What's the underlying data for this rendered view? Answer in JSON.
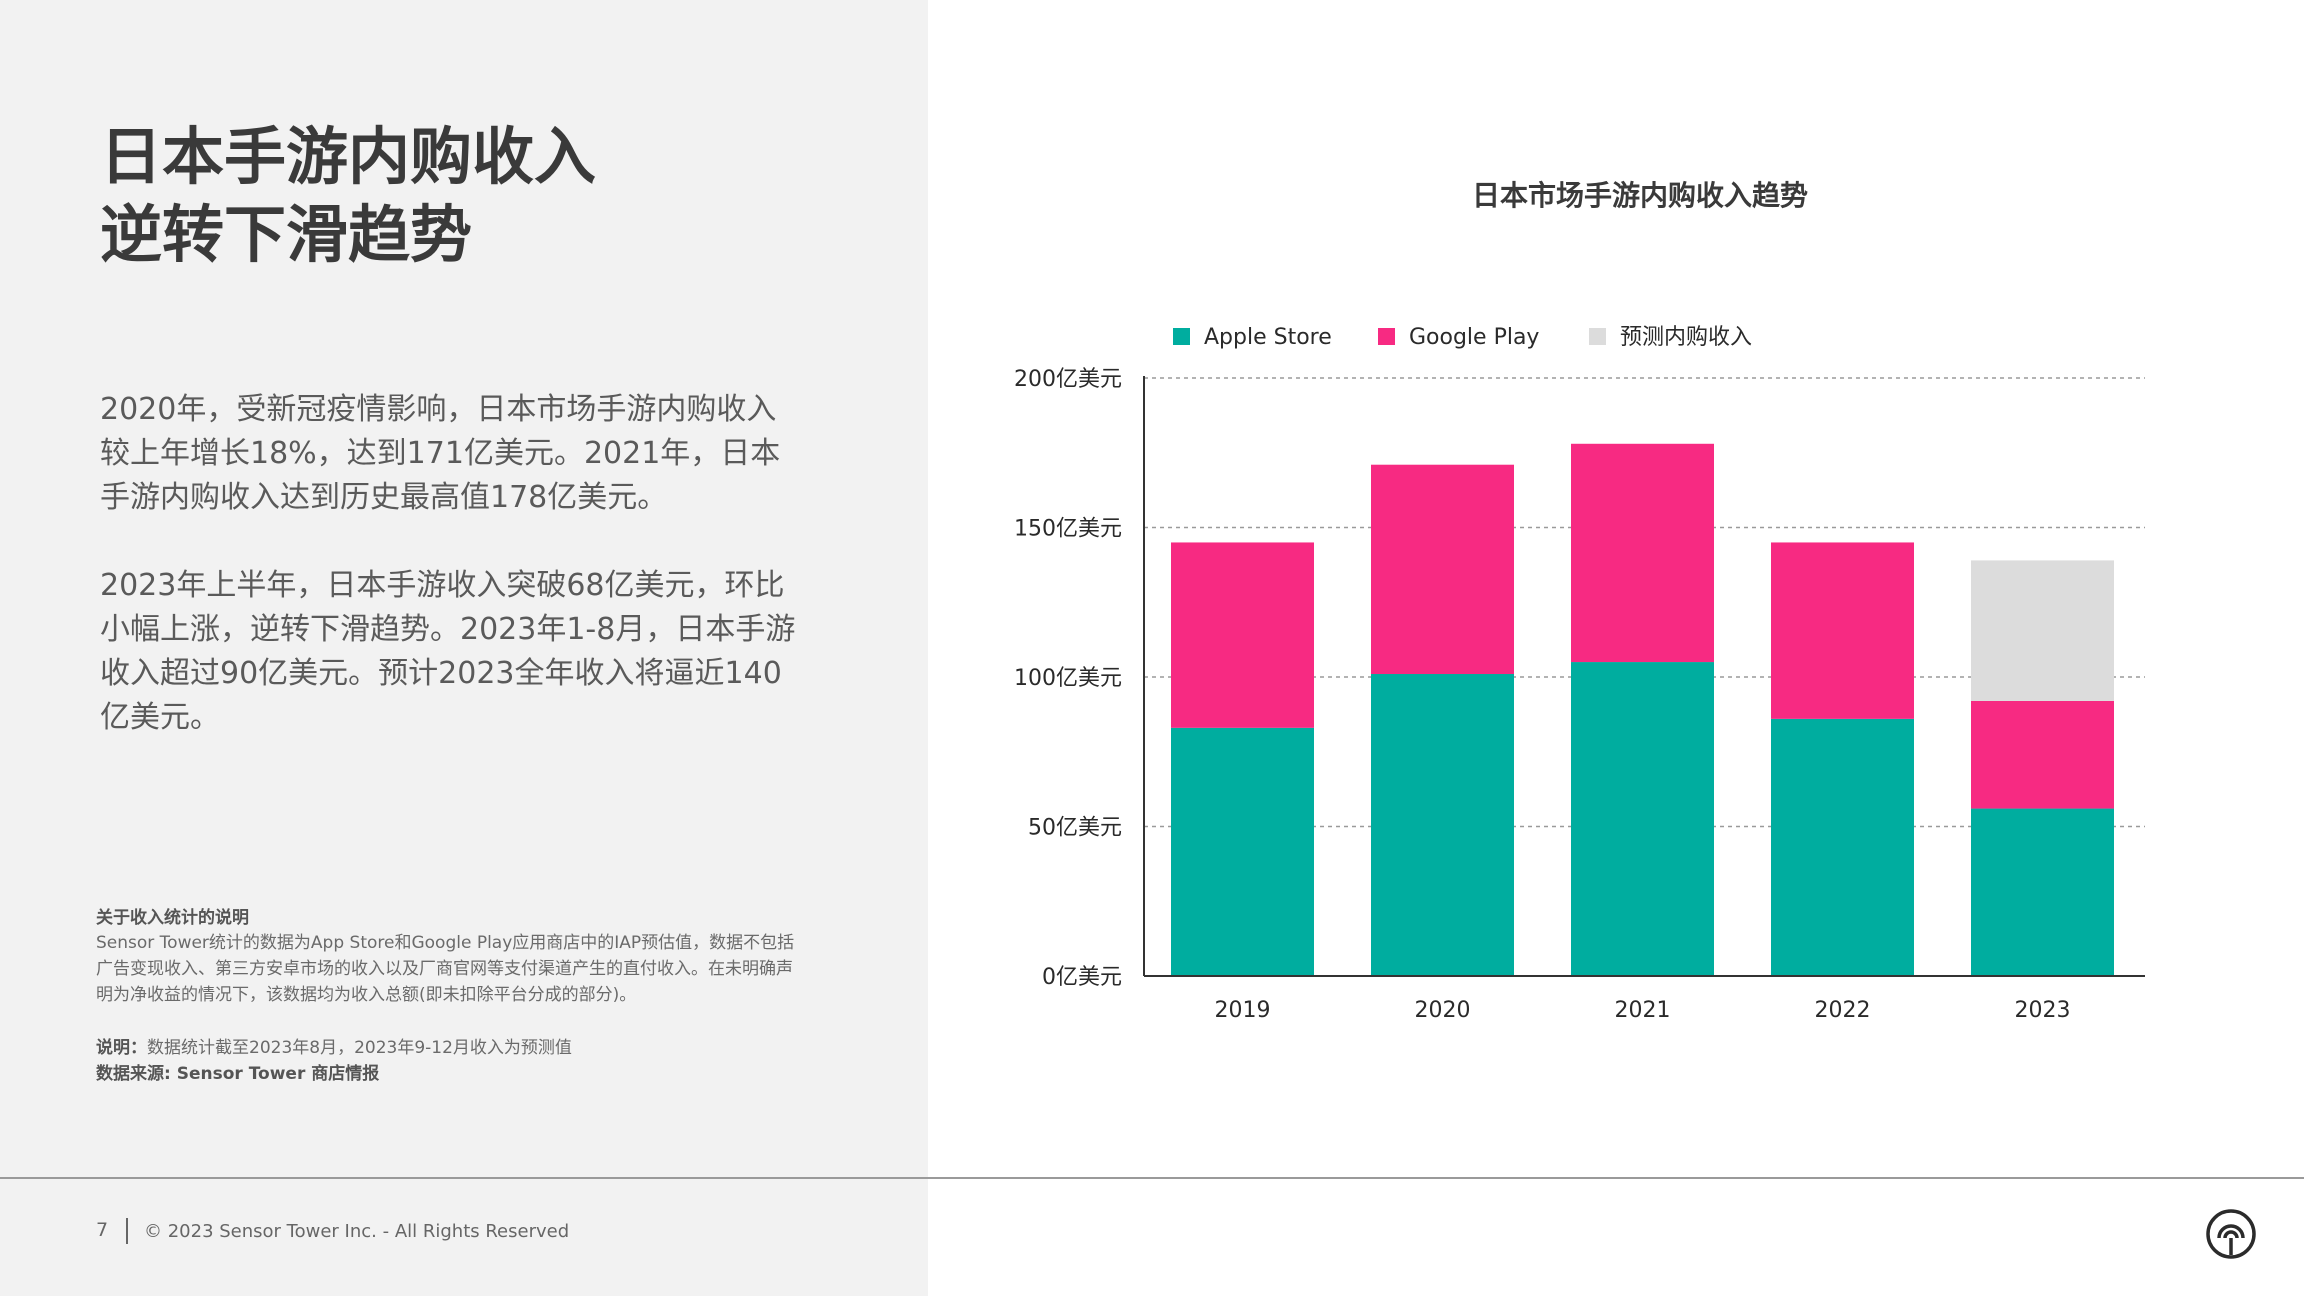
{
  "slide": {
    "heading_line1": "日本手游内购收入",
    "heading_line2": "逆转下滑趋势",
    "paragraph1": "2020年，受新冠疫情影响，日本市场手游内购收入较上年增长18%，达到171亿美元。2021年，日本手游内购收入达到历史最高值178亿美元。",
    "paragraph2": "2023年上半年，日本手游收入突破68亿美元，环比小幅上涨，逆转下滑趋势。2023年1-8月，日本手游收入超过90亿美元。预计2023全年收入将逼近140亿美元。",
    "note_title": "关于收入统计的说明",
    "note_body": "Sensor Tower统计的数据为App Store和Google Play应用商店中的IAP预估值，数据不包括广告变现收入、第三方安卓市场的收入以及厂商官网等支付渠道产生的直付收入。在未明确声明为净收益的情况下，该数据均为收入总额(即未扣除平台分成的部分)。",
    "note_expl_label": "说明：",
    "note_expl_text": "数据统计截至2023年8月，2023年9-12月收入为预测值",
    "note_source": "数据来源: Sensor Tower 商店情报"
  },
  "footer": {
    "page_number": "7",
    "copyright": "© 2023 Sensor Tower Inc. - All Rights Reserved",
    "logo_icon": "sensor-tower-logo-icon"
  },
  "chart_data": {
    "type": "bar",
    "stacked": true,
    "title": "日本市场手游内购收入趋势",
    "categories": [
      "2019",
      "2020",
      "2021",
      "2022",
      "2023"
    ],
    "series": [
      {
        "name": "Apple Store",
        "color": "#00ad9f",
        "values": [
          83,
          101,
          105,
          86,
          56
        ]
      },
      {
        "name": "Google Play",
        "color": "#f72a82",
        "values": [
          62,
          70,
          73,
          59,
          36
        ]
      },
      {
        "name": "预测内购收入",
        "color": "#dcdcdc",
        "values": [
          0,
          0,
          0,
          0,
          47
        ]
      }
    ],
    "ylim": [
      0,
      200
    ],
    "yticks": [
      0,
      50,
      100,
      150,
      200
    ],
    "ytick_labels": [
      "0亿美元",
      "50亿美元",
      "100亿美元",
      "150亿美元",
      "200亿美元"
    ],
    "xlabel": "",
    "ylabel": "",
    "grid": "horizontal-dashed",
    "legend_position": "top"
  }
}
